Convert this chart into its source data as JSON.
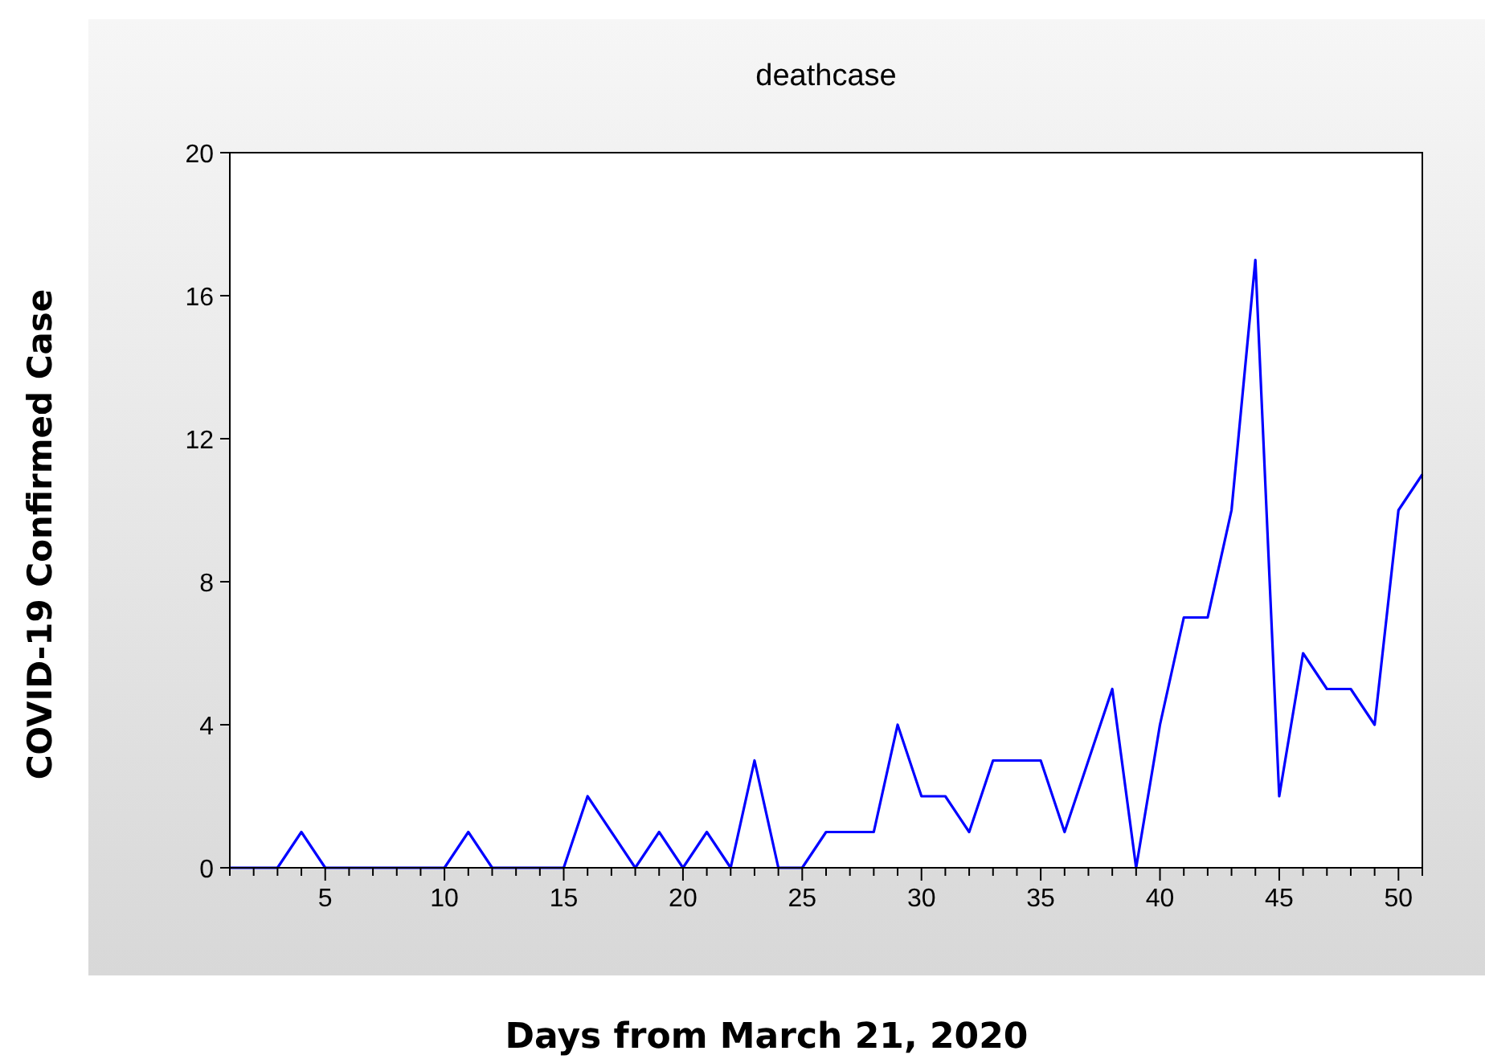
{
  "chart_data": {
    "type": "line",
    "title": "deathcase",
    "xlabel": "Days from March 21, 2020",
    "ylabel": "COVID-19 Confirmed Case",
    "x": [
      1,
      2,
      3,
      4,
      5,
      6,
      7,
      8,
      9,
      10,
      11,
      12,
      13,
      14,
      15,
      16,
      17,
      18,
      19,
      20,
      21,
      22,
      23,
      24,
      25,
      26,
      27,
      28,
      29,
      30,
      31,
      32,
      33,
      34,
      35,
      36,
      37,
      38,
      39,
      40,
      41,
      42,
      43,
      44,
      45,
      46,
      47,
      48,
      49,
      50,
      51
    ],
    "series": [
      {
        "color": "#0000ff",
        "values": [
          0,
          0,
          0,
          1,
          0,
          0,
          0,
          0,
          0,
          0,
          1,
          0,
          0,
          0,
          0,
          2,
          1,
          0,
          1,
          0,
          1,
          0,
          3,
          0,
          0,
          1,
          1,
          1,
          4,
          2,
          2,
          1,
          3,
          3,
          3,
          1,
          3,
          5,
          0,
          4,
          7,
          7,
          10,
          17,
          2,
          6,
          5,
          5,
          4,
          10,
          11
        ]
      }
    ],
    "xlim": [
      1,
      51
    ],
    "xticks": [
      {
        "value": 1,
        "label": null
      },
      {
        "value": 2,
        "label": null
      },
      {
        "value": 3,
        "label": null
      },
      {
        "value": 4,
        "label": null
      },
      5,
      {
        "value": 6,
        "label": null
      },
      {
        "value": 7,
        "label": null
      },
      {
        "value": 8,
        "label": null
      },
      {
        "value": 9,
        "label": null
      },
      10,
      {
        "value": 11,
        "label": null
      },
      {
        "value": 12,
        "label": null
      },
      {
        "value": 13,
        "label": null
      },
      {
        "value": 14,
        "label": null
      },
      15,
      {
        "value": 16,
        "label": null
      },
      {
        "value": 17,
        "label": null
      },
      {
        "value": 18,
        "label": null
      },
      {
        "value": 19,
        "label": null
      },
      20,
      {
        "value": 21,
        "label": null
      },
      {
        "value": 22,
        "label": null
      },
      {
        "value": 23,
        "label": null
      },
      {
        "value": 24,
        "label": null
      },
      25,
      {
        "value": 26,
        "label": null
      },
      {
        "value": 27,
        "label": null
      },
      {
        "value": 28,
        "label": null
      },
      {
        "value": 29,
        "label": null
      },
      30,
      {
        "value": 31,
        "label": null
      },
      {
        "value": 32,
        "label": null
      },
      {
        "value": 33,
        "label": null
      },
      {
        "value": 34,
        "label": null
      },
      35,
      {
        "value": 36,
        "label": null
      },
      {
        "value": 37,
        "label": null
      },
      {
        "value": 38,
        "label": null
      },
      {
        "value": 39,
        "label": null
      },
      40,
      {
        "value": 41,
        "label": null
      },
      {
        "value": 42,
        "label": null
      },
      {
        "value": 43,
        "label": null
      },
      {
        "value": 44,
        "label": null
      },
      45,
      {
        "value": 46,
        "label": null
      },
      {
        "value": 47,
        "label": null
      },
      {
        "value": 48,
        "label": null
      },
      {
        "value": 49,
        "label": null
      },
      50,
      {
        "value": 51,
        "label": null
      }
    ],
    "ylim": [
      0,
      20
    ],
    "yticks": [
      0,
      4,
      8,
      12,
      16,
      20
    ],
    "grid": false
  }
}
